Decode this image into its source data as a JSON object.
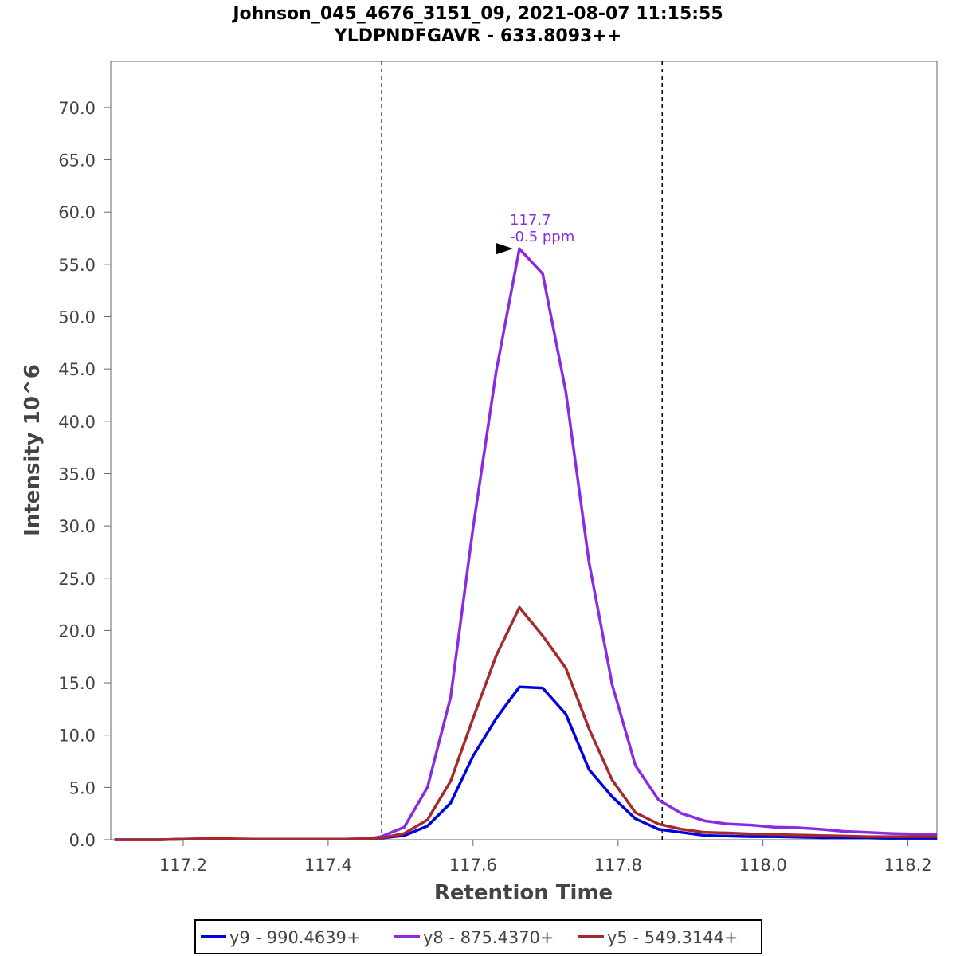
{
  "chart_data": {
    "type": "line",
    "title": "Johnson_045_4676_3151_09, 2021-08-07 11:15:55",
    "subtitle": "YLDPNDFGAVR - 633.8093++",
    "xlabel": "Retention Time",
    "ylabel": "Intensity 10^6",
    "xlim": [
      117.1,
      118.24
    ],
    "ylim": [
      0,
      74.0
    ],
    "x_ticks": [
      "117.2",
      "117.4",
      "117.6",
      "117.8",
      "118.0",
      "118.2"
    ],
    "x_tick_values": [
      117.2,
      117.4,
      117.6,
      117.8,
      118.0,
      118.2
    ],
    "y_ticks": [
      "0.0",
      "5.0",
      "10.0",
      "15.0",
      "20.0",
      "25.0",
      "30.0",
      "35.0",
      "40.0",
      "45.0",
      "50.0",
      "55.0",
      "60.0",
      "65.0",
      "70.0"
    ],
    "y_tick_values": [
      0,
      5,
      10,
      15,
      20,
      25,
      30,
      35,
      40,
      45,
      50,
      55,
      60,
      65,
      70
    ],
    "grid": false,
    "legend_position": "bottom-center",
    "boundaries": [
      117.474,
      117.861
    ],
    "x": [
      117.105,
      117.137,
      117.169,
      117.201,
      117.233,
      117.265,
      117.297,
      117.329,
      117.361,
      117.393,
      117.425,
      117.457,
      117.473,
      117.505,
      117.537,
      117.569,
      117.6,
      117.632,
      117.664,
      117.696,
      117.728,
      117.76,
      117.792,
      117.824,
      117.856,
      117.888,
      117.92,
      117.952,
      117.984,
      118.016,
      118.048,
      118.08,
      118.112,
      118.144,
      118.176,
      118.208,
      118.24
    ],
    "series": [
      {
        "name": "y9 - 990.4639+",
        "color": "#0000e0",
        "values": [
          0,
          0,
          0,
          0.05,
          0.05,
          0.05,
          0.05,
          0.05,
          0.05,
          0.05,
          0.05,
          0.1,
          0.15,
          0.4,
          1.3,
          3.5,
          8.0,
          11.6,
          14.6,
          14.5,
          12.0,
          6.7,
          4.1,
          2.0,
          1.0,
          0.7,
          0.4,
          0.35,
          0.3,
          0.3,
          0.25,
          0.2,
          0.2,
          0.2,
          0.15,
          0.15,
          0.15
        ]
      },
      {
        "name": "y8 - 875.4370+",
        "color": "#8a2be2",
        "values": [
          0,
          0,
          0,
          0.05,
          0.1,
          0.05,
          0.05,
          0.05,
          0.05,
          0.05,
          0.05,
          0.1,
          0.3,
          1.2,
          5.0,
          13.6,
          29.8,
          44.8,
          56.5,
          54.1,
          42.8,
          26.5,
          14.8,
          7.1,
          3.8,
          2.5,
          1.8,
          1.5,
          1.4,
          1.2,
          1.15,
          1.0,
          0.8,
          0.7,
          0.6,
          0.55,
          0.5
        ]
      },
      {
        "name": "y5 - 549.3144+",
        "color": "#a52a2a",
        "values": [
          0,
          0,
          0,
          0.05,
          0.1,
          0.1,
          0.05,
          0.05,
          0.05,
          0.05,
          0.05,
          0.1,
          0.15,
          0.6,
          1.9,
          5.6,
          11.6,
          17.6,
          22.2,
          19.5,
          16.4,
          10.6,
          5.7,
          2.6,
          1.5,
          1.0,
          0.7,
          0.65,
          0.55,
          0.5,
          0.45,
          0.4,
          0.35,
          0.3,
          0.3,
          0.3,
          0.3
        ]
      }
    ],
    "annotation": {
      "x": 117.664,
      "y": 56.5,
      "line1": "117.7",
      "line2": "-0.5 ppm",
      "color": "#8a2be2"
    }
  }
}
